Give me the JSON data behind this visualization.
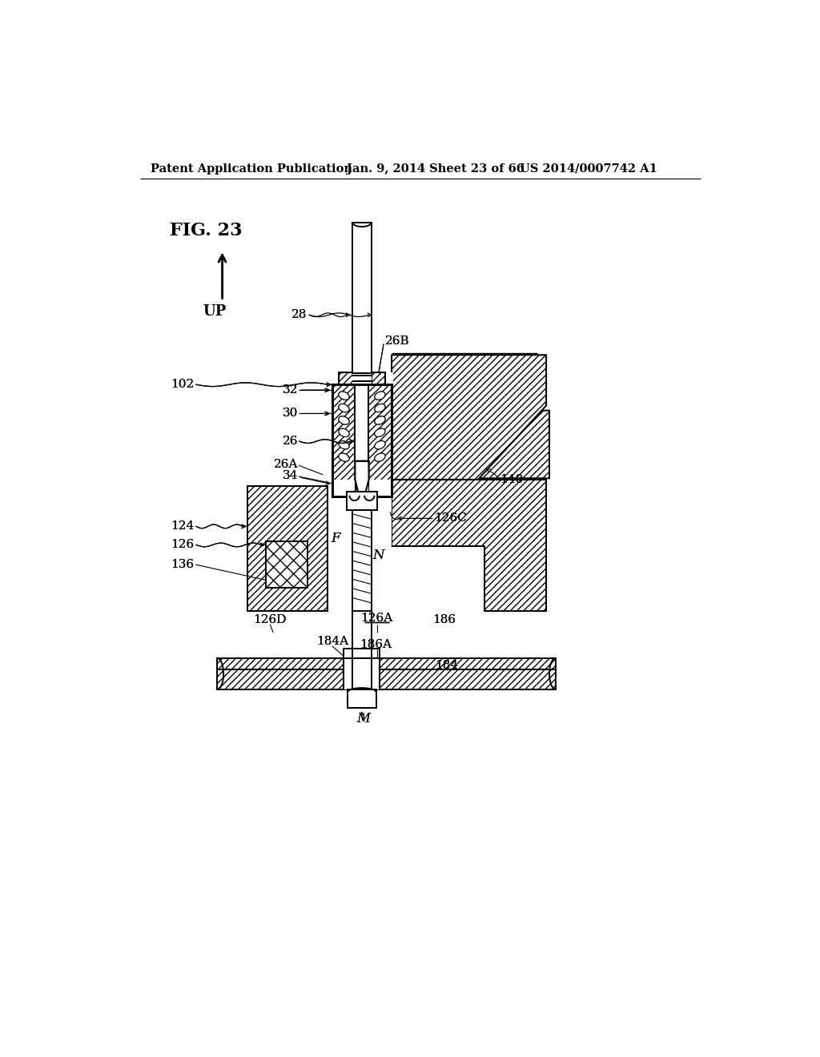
{
  "bg": "#ffffff",
  "black": "#000000",
  "header_left": "Patent Application Publication",
  "header_date": "Jan. 9, 2014",
  "header_sheet": "Sheet 23 of 66",
  "header_patent": "US 2014/0007742 A1",
  "fig_label": "FIG. 23",
  "up_text": "UP",
  "lw": 1.4,
  "lw2": 2.0,
  "lw_thin": 0.8
}
